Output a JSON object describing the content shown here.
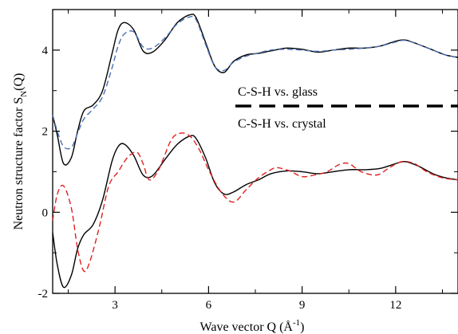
{
  "chart_data": {
    "type": "line",
    "xlabel": "Wave vector Q (Å",
    "xlabel_sup": "-1",
    "xlabel_close": ")",
    "ylabel": "Neutron structure factor S",
    "ylabel_sub": "N",
    "ylabel_close": "(Q)",
    "xlim": [
      1.0,
      14.0
    ],
    "ylim": [
      -2.0,
      5.0
    ],
    "xticks": [
      3,
      6,
      9,
      12
    ],
    "xtick_labels": [
      "3",
      "6",
      "9",
      "12"
    ],
    "yticks": [
      -2,
      0,
      2,
      4
    ],
    "ytick_labels": [
      "-2",
      "0",
      "2",
      "4"
    ],
    "grid": false,
    "annotations": {
      "glass": "C-S-H vs. glass",
      "crystal": "C-S-H vs. crystal"
    },
    "series": [
      {
        "group": "glass",
        "color": "#000000",
        "dash": "solid",
        "x": [
          1.0,
          1.15,
          1.35,
          1.6,
          1.8,
          2.0,
          2.3,
          2.6,
          2.9,
          3.1,
          3.3,
          3.6,
          3.9,
          4.2,
          4.6,
          5.0,
          5.4,
          5.6,
          5.9,
          6.2,
          6.5,
          6.8,
          7.2,
          7.6,
          8.0,
          8.5,
          9.0,
          9.5,
          10.0,
          10.5,
          11.0,
          11.5,
          12.0,
          12.3,
          12.7,
          13.2,
          13.6,
          14.0
        ],
        "y": [
          2.4,
          1.9,
          1.2,
          1.35,
          2.0,
          2.5,
          2.65,
          3.0,
          3.9,
          4.5,
          4.68,
          4.5,
          3.98,
          3.95,
          4.25,
          4.68,
          4.87,
          4.8,
          4.2,
          3.6,
          3.45,
          3.72,
          3.88,
          3.92,
          3.98,
          4.05,
          4.02,
          3.95,
          4.0,
          4.05,
          4.05,
          4.1,
          4.22,
          4.25,
          4.15,
          4.0,
          3.88,
          3.82
        ]
      },
      {
        "group": "glass",
        "color": "#4a6fb5",
        "dash": "dashed",
        "x": [
          1.0,
          1.15,
          1.35,
          1.6,
          1.8,
          2.0,
          2.3,
          2.6,
          2.9,
          3.1,
          3.3,
          3.6,
          3.9,
          4.2,
          4.6,
          5.0,
          5.4,
          5.6,
          5.9,
          6.2,
          6.5,
          6.8,
          7.2,
          7.6,
          8.0,
          8.5,
          9.0,
          9.5,
          10.0,
          10.5,
          11.0,
          11.5,
          12.0,
          12.3,
          12.7,
          13.2,
          13.6,
          14.0
        ],
        "y": [
          2.4,
          2.0,
          1.62,
          1.6,
          1.95,
          2.3,
          2.55,
          2.85,
          3.55,
          4.1,
          4.4,
          4.45,
          4.08,
          4.05,
          4.3,
          4.65,
          4.82,
          4.75,
          4.15,
          3.6,
          3.5,
          3.7,
          3.85,
          3.93,
          4.0,
          4.02,
          4.0,
          3.97,
          4.0,
          4.02,
          4.05,
          4.1,
          4.2,
          4.24,
          4.15,
          4.0,
          3.88,
          3.82
        ]
      },
      {
        "group": "crystal",
        "color": "#000000",
        "dash": "solid",
        "x": [
          1.0,
          1.15,
          1.35,
          1.6,
          1.8,
          2.0,
          2.3,
          2.6,
          2.9,
          3.1,
          3.3,
          3.6,
          3.9,
          4.2,
          4.6,
          5.0,
          5.4,
          5.6,
          5.9,
          6.2,
          6.5,
          6.8,
          7.2,
          7.6,
          8.0,
          8.5,
          9.0,
          9.5,
          10.0,
          10.5,
          11.0,
          11.5,
          12.0,
          12.3,
          12.7,
          13.2,
          13.6,
          14.0
        ],
        "y": [
          -0.5,
          -1.3,
          -1.85,
          -1.55,
          -0.9,
          -0.55,
          -0.3,
          0.3,
          1.25,
          1.62,
          1.68,
          1.4,
          0.92,
          0.9,
          1.3,
          1.68,
          1.88,
          1.82,
          1.35,
          0.72,
          0.45,
          0.5,
          0.68,
          0.8,
          0.95,
          1.02,
          1.0,
          0.95,
          1.0,
          1.05,
          1.05,
          1.08,
          1.2,
          1.25,
          1.15,
          0.95,
          0.85,
          0.8
        ]
      },
      {
        "group": "crystal",
        "color": "#e02020",
        "dash": "dashed",
        "x": [
          1.0,
          1.15,
          1.35,
          1.6,
          1.8,
          2.0,
          2.2,
          2.5,
          2.8,
          3.1,
          3.4,
          3.7,
          3.9,
          4.1,
          4.4,
          4.8,
          5.1,
          5.4,
          5.7,
          6.0,
          6.4,
          6.8,
          7.2,
          7.6,
          8.0,
          8.2,
          8.6,
          9.0,
          9.4,
          9.8,
          10.2,
          10.5,
          10.9,
          11.4,
          11.8,
          12.2,
          12.6,
          13.0,
          13.5,
          14.0
        ],
        "y": [
          -0.2,
          0.45,
          0.65,
          0.1,
          -0.9,
          -1.45,
          -1.2,
          -0.35,
          0.65,
          1.0,
          1.35,
          1.48,
          1.2,
          0.8,
          1.05,
          1.78,
          1.95,
          1.88,
          1.55,
          1.05,
          0.5,
          0.25,
          0.55,
          0.85,
          1.05,
          1.1,
          1.02,
          0.88,
          0.92,
          1.0,
          1.18,
          1.2,
          1.0,
          0.92,
          1.1,
          1.25,
          1.2,
          1.0,
          0.85,
          0.8
        ]
      }
    ]
  }
}
